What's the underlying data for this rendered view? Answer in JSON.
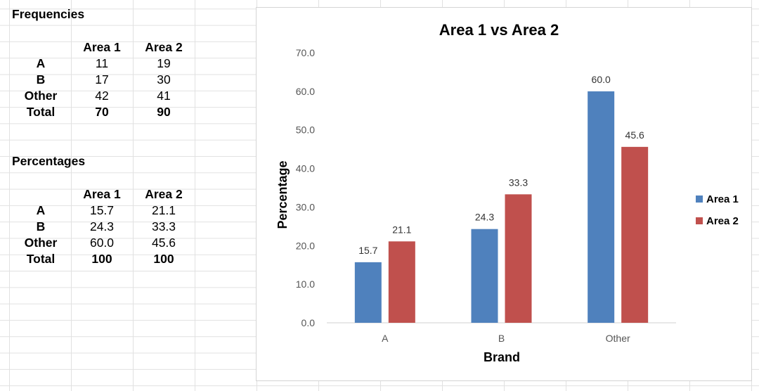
{
  "frequencies": {
    "title": "Frequencies",
    "headers": [
      "Area 1",
      "Area 2"
    ],
    "rows": [
      {
        "label": "A",
        "values": [
          "11",
          "19"
        ]
      },
      {
        "label": "B",
        "values": [
          "17",
          "30"
        ]
      },
      {
        "label": "Other",
        "values": [
          "42",
          "41"
        ]
      },
      {
        "label": "Total",
        "values": [
          "70",
          "90"
        ]
      }
    ]
  },
  "percentages": {
    "title": "Percentages",
    "headers": [
      "Area 1",
      "Area 2"
    ],
    "rows": [
      {
        "label": "A",
        "values": [
          "15.7",
          "21.1"
        ]
      },
      {
        "label": "B",
        "values": [
          "24.3",
          "33.3"
        ]
      },
      {
        "label": "Other",
        "values": [
          "60.0",
          "45.6"
        ]
      },
      {
        "label": "Total",
        "values": [
          "100",
          "100"
        ]
      }
    ]
  },
  "chart_data": {
    "type": "bar",
    "title": "Area 1 vs Area 2",
    "xlabel": "Brand",
    "ylabel": "Percentage",
    "categories": [
      "A",
      "B",
      "Other"
    ],
    "series": [
      {
        "name": "Area 1",
        "values": [
          15.7,
          24.3,
          60.0
        ],
        "color": "#4f81bd"
      },
      {
        "name": "Area 2",
        "values": [
          21.1,
          33.3,
          45.6
        ],
        "color": "#c0504d"
      }
    ],
    "ylim": [
      0,
      70
    ],
    "yticks": [
      0,
      10,
      20,
      30,
      40,
      50,
      60,
      70
    ],
    "tick_format_decimals": 1,
    "grid": false,
    "legend": "right"
  }
}
